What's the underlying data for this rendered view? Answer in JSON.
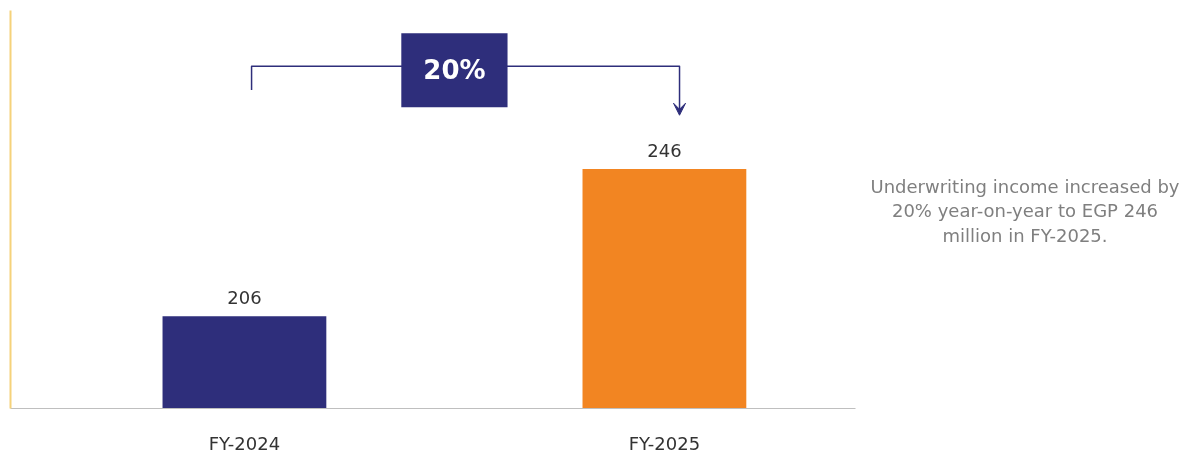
{
  "chart_data": {
    "type": "bar",
    "categories": [
      "FY-2024",
      "FY-2025"
    ],
    "values": [
      206,
      246
    ],
    "colors": [
      "#2e2e7b",
      "#f28522"
    ],
    "ylim": [
      181,
      289
    ],
    "tick_labels": "x",
    "data_labels": true,
    "grid": false,
    "annotations": [
      "20%",
      "Underwriting income increased by 20% year-on-year to EGP 246 million in FY-2025."
    ]
  }
}
